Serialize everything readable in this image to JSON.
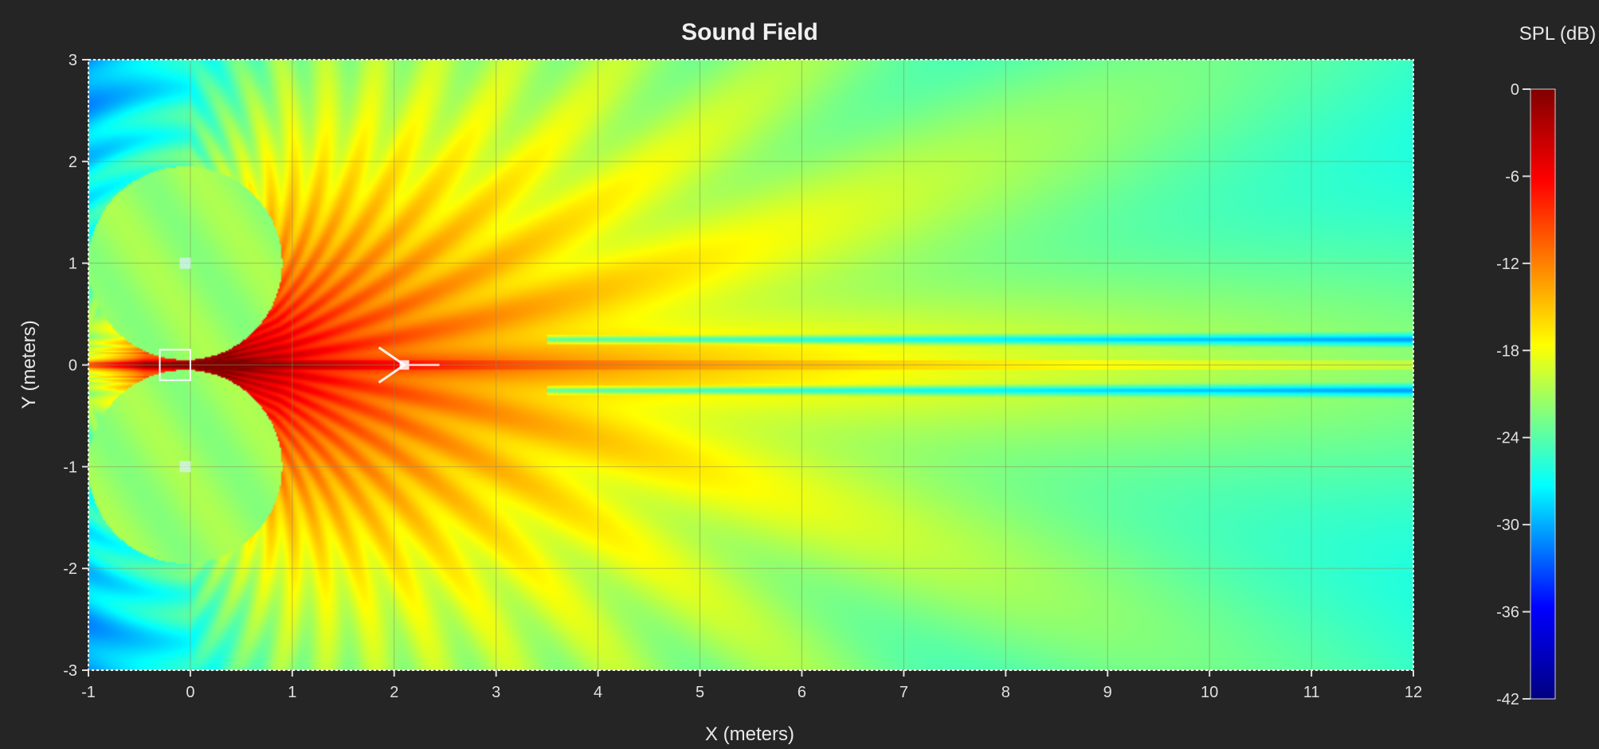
{
  "chart_data": {
    "type": "heatmap",
    "title": "Sound Field",
    "xlabel": "X (meters)",
    "ylabel": "Y (meters)",
    "xlim": [
      -1,
      12
    ],
    "ylim": [
      -3,
      3
    ],
    "x_ticks": [
      "-1",
      "0",
      "1",
      "2",
      "3",
      "4",
      "5",
      "6",
      "7",
      "8",
      "9",
      "10",
      "11",
      "12"
    ],
    "y_ticks": [
      "3",
      "2",
      "1",
      "0",
      "-1",
      "-2",
      "-3"
    ],
    "grid": true,
    "colorbar": {
      "label": "SPL (dB)",
      "range": [
        -42,
        0
      ],
      "ticks": [
        "0",
        "-6",
        "-12",
        "-18",
        "-24",
        "-30",
        "-36",
        "-42"
      ],
      "colormap": [
        "#000080",
        "#0000ff",
        "#00ffff",
        "#ffff00",
        "#ff0000",
        "#800000"
      ]
    },
    "sources": [
      {
        "x": -0.05,
        "y": 1.0
      },
      {
        "x": -0.05,
        "y": -1.0
      }
    ],
    "listener": {
      "x": 2.1,
      "y": 0.0
    },
    "peak_db": 0,
    "min_db": -42
  }
}
